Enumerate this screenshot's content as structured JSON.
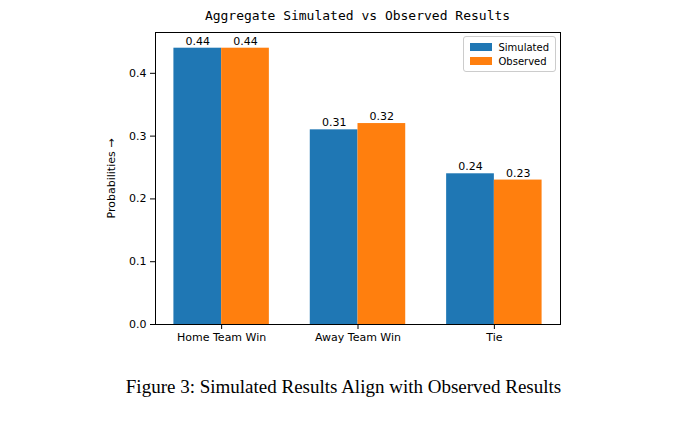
{
  "chart_data": {
    "type": "bar",
    "title": "Aggregate Simulated vs Observed Results",
    "caption": "Figure 3: Simulated Results Align with Observed Results",
    "y_label": "Probabilities",
    "categories": [
      "Home Team Win",
      "Away Team Win",
      "Tie"
    ],
    "series": [
      {
        "name": "Simulated",
        "color": "#1f77b4",
        "values": [
          0.44,
          0.31,
          0.24
        ]
      },
      {
        "name": "Observed",
        "color": "#ff7f0e",
        "values": [
          0.44,
          0.32,
          0.23
        ]
      }
    ],
    "ylim": [
      0,
      0.465
    ],
    "yticks": [
      {
        "value": 0,
        "label": "0.0"
      },
      0.1,
      0.2,
      0.3,
      0.4
    ],
    "grid": false,
    "legend": "upper right",
    "data_labels": true
  }
}
